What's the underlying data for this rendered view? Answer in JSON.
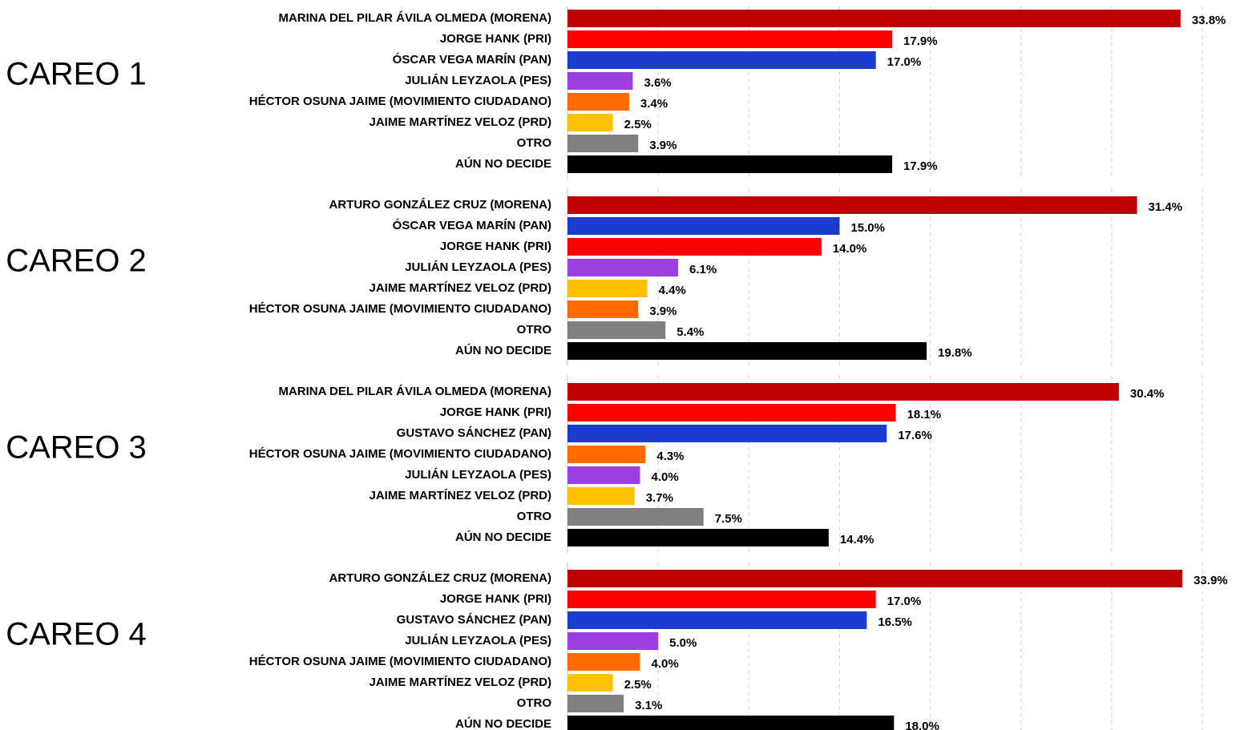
{
  "chart_data": [
    {
      "type": "bar",
      "orientation": "horizontal",
      "title": "CAREO 1",
      "categories": [
        "MARINA DEL PILAR ÁVILA OLMEDA (MORENA)",
        "JORGE HANK (PRI)",
        "ÓSCAR VEGA MARÍN (PAN)",
        "JULIÁN LEYZAOLA (PES)",
        "HÉCTOR OSUNA JAIME (MOVIMIENTO CIUDADANO)",
        "JAIME MARTÍNEZ VELOZ (PRD)",
        "OTRO",
        "AÚN NO DECIDE"
      ],
      "values": [
        33.8,
        17.9,
        17.0,
        3.6,
        3.4,
        2.5,
        3.9,
        17.9
      ],
      "value_labels": [
        "33.8%",
        "17.9%",
        "17.0%",
        "3.6%",
        "3.4%",
        "2.5%",
        "3.9%",
        "17.9%"
      ],
      "colors": [
        "#c00000",
        "#ff0000",
        "#1a3ccc",
        "#9b40dc",
        "#ff6a00",
        "#ffc000",
        "#808080",
        "#000000"
      ],
      "xlim": [
        0,
        35
      ],
      "xticks": [
        0,
        5,
        10,
        15,
        20,
        25,
        30,
        35
      ],
      "grid": true
    },
    {
      "type": "bar",
      "orientation": "horizontal",
      "title": "CAREO 2",
      "categories": [
        "ARTURO GONZÁLEZ CRUZ (MORENA)",
        "ÓSCAR VEGA MARÍN (PAN)",
        "JORGE HANK (PRI)",
        "JULIÁN LEYZAOLA (PES)",
        "JAIME MARTÍNEZ VELOZ (PRD)",
        "HÉCTOR OSUNA JAIME (MOVIMIENTO CIUDADANO)",
        "OTRO",
        "AÚN NO DECIDE"
      ],
      "values": [
        31.4,
        15.0,
        14.0,
        6.1,
        4.4,
        3.9,
        5.4,
        19.8
      ],
      "value_labels": [
        "31.4%",
        "15.0%",
        "14.0%",
        "6.1%",
        "4.4%",
        "3.9%",
        "5.4%",
        "19.8%"
      ],
      "colors": [
        "#c00000",
        "#1a3ccc",
        "#ff0000",
        "#9b40dc",
        "#ffc000",
        "#ff6a00",
        "#808080",
        "#000000"
      ],
      "xlim": [
        0,
        35
      ],
      "xticks": [
        0,
        5,
        10,
        15,
        20,
        25,
        30,
        35
      ],
      "grid": true
    },
    {
      "type": "bar",
      "orientation": "horizontal",
      "title": "CAREO 3",
      "categories": [
        "MARINA DEL PILAR ÁVILA OLMEDA (MORENA)",
        "JORGE HANK (PRI)",
        "GUSTAVO SÁNCHEZ (PAN)",
        "HÉCTOR OSUNA JAIME (MOVIMIENTO CIUDADANO)",
        "JULIÁN LEYZAOLA (PES)",
        "JAIME MARTÍNEZ VELOZ (PRD)",
        "OTRO",
        "AÚN NO DECIDE"
      ],
      "values": [
        30.4,
        18.1,
        17.6,
        4.3,
        4.0,
        3.7,
        7.5,
        14.4
      ],
      "value_labels": [
        "30.4%",
        "18.1%",
        "17.6%",
        "4.3%",
        "4.0%",
        "3.7%",
        "7.5%",
        "14.4%"
      ],
      "colors": [
        "#c00000",
        "#ff0000",
        "#1a3ccc",
        "#ff6a00",
        "#9b40dc",
        "#ffc000",
        "#808080",
        "#000000"
      ],
      "xlim": [
        0,
        35
      ],
      "xticks": [
        0,
        5,
        10,
        15,
        20,
        25,
        30,
        35
      ],
      "grid": true
    },
    {
      "type": "bar",
      "orientation": "horizontal",
      "title": "CAREO 4",
      "categories": [
        "ARTURO GONZÁLEZ CRUZ (MORENA)",
        "JORGE HANK (PRI)",
        "GUSTAVO SÁNCHEZ (PAN)",
        "JULIÁN LEYZAOLA (PES)",
        "HÉCTOR OSUNA JAIME (MOVIMIENTO CIUDADANO)",
        "JAIME MARTÍNEZ VELOZ (PRD)",
        "OTRO",
        "AÚN NO DECIDE"
      ],
      "values": [
        33.9,
        17.0,
        16.5,
        5.0,
        4.0,
        2.5,
        3.1,
        18.0
      ],
      "value_labels": [
        "33.9%",
        "17.0%",
        "16.5%",
        "5.0%",
        "4.0%",
        "2.5%",
        "3.1%",
        "18.0%"
      ],
      "colors": [
        "#c00000",
        "#ff0000",
        "#1a3ccc",
        "#9b40dc",
        "#ff6a00",
        "#ffc000",
        "#808080",
        "#000000"
      ],
      "xlim": [
        0,
        35
      ],
      "xticks": [
        0,
        5,
        10,
        15,
        20,
        25,
        30,
        35
      ],
      "grid": true
    }
  ]
}
